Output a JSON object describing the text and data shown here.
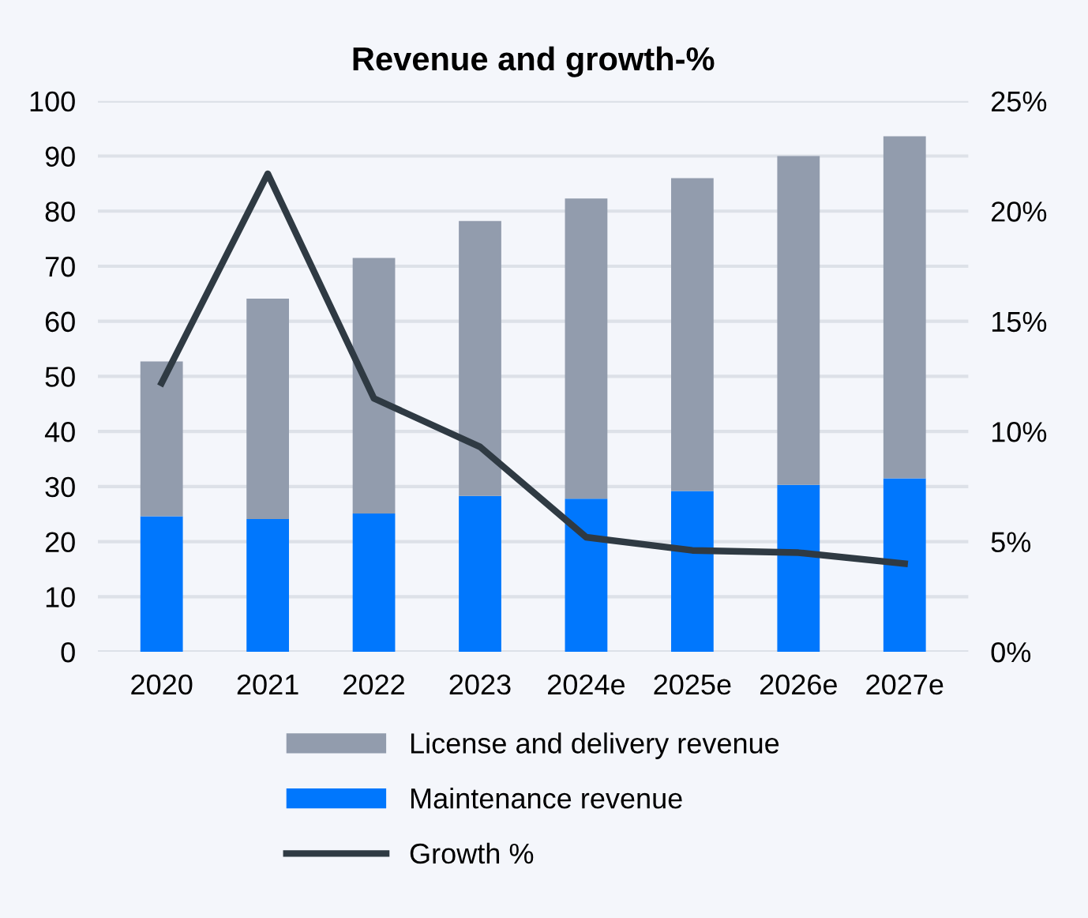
{
  "chart_data": {
    "type": "bar",
    "title": "Revenue and growth-%",
    "stacked": true,
    "categories": [
      "2020",
      "2021",
      "2022",
      "2023",
      "2024e",
      "2025e",
      "2026e",
      "2027e"
    ],
    "series": [
      {
        "name": "Maintenance revenue",
        "color": "#0077fd",
        "values": [
          24.6,
          24.1,
          25.1,
          28.3,
          27.8,
          29.2,
          30.3,
          31.5
        ]
      },
      {
        "name": "License and delivery revenue",
        "color": "#929cad",
        "values": [
          28.1,
          40.0,
          46.4,
          49.9,
          54.5,
          56.8,
          59.7,
          62.1
        ]
      },
      {
        "name": "Growth %",
        "type": "line",
        "axis": "y2",
        "color": "#2f3a43",
        "values": [
          12.2,
          21.7,
          11.5,
          9.3,
          5.2,
          4.6,
          4.5,
          4.0
        ]
      }
    ],
    "ylim": [
      0,
      100
    ],
    "yticks": [
      0,
      10,
      20,
      30,
      40,
      50,
      60,
      70,
      80,
      90,
      100
    ],
    "y2lim": [
      0,
      25
    ],
    "y2ticks": [
      {
        "value": 0,
        "label": "0%"
      },
      {
        "value": 5,
        "label": "5%"
      },
      {
        "value": 10,
        "label": "10%"
      },
      {
        "value": 15,
        "label": "15%"
      },
      {
        "value": 20,
        "label": "20%"
      },
      {
        "value": 25,
        "label": "25%"
      }
    ],
    "grid": "y",
    "legend": "bottom",
    "marker": "none"
  }
}
